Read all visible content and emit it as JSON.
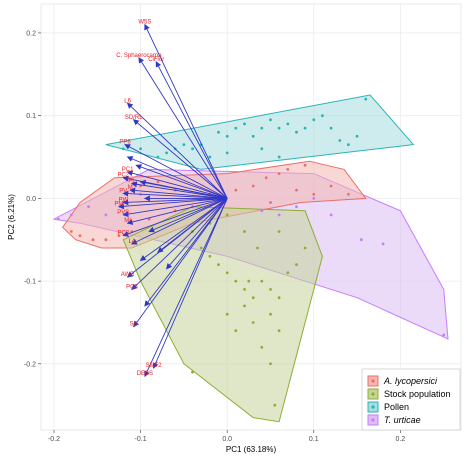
{
  "chart_data": {
    "type": "scatter",
    "title": "",
    "xlabel": "PC1 (63.18%)",
    "ylabel": "PC2 (6.21%)",
    "xlim": [
      -0.215,
      0.27
    ],
    "ylim": [
      -0.28,
      0.235
    ],
    "x_ticks": [
      {
        "value": -0.2,
        "label": "-0.2"
      },
      {
        "value": -0.1,
        "label": "-0.1"
      },
      {
        "value": 0.0,
        "label": "0.0"
      },
      {
        "value": 0.1,
        "label": "0.1"
      },
      {
        "value": 0.2,
        "label": "0.2"
      }
    ],
    "y_ticks": [
      {
        "value": 0.2,
        "label": "0.2"
      },
      {
        "value": 0.1,
        "label": "0.1"
      },
      {
        "value": 0.0,
        "label": "0.0"
      },
      {
        "value": -0.1,
        "label": "-0.1"
      },
      {
        "value": -0.2,
        "label": "-0.2"
      }
    ],
    "grid": true,
    "legend_position": "bottom-right",
    "series": [
      {
        "name": "A. lycopersici",
        "italic": true,
        "color": "#e8706a",
        "fill": "#f3b6b0",
        "hull": [
          [
            -0.19,
            -0.035
          ],
          [
            -0.175,
            -0.05
          ],
          [
            -0.145,
            -0.06
          ],
          [
            -0.11,
            -0.06
          ],
          [
            -0.04,
            -0.03
          ],
          [
            0.085,
            -0.005
          ],
          [
            0.16,
            0.0
          ],
          [
            0.135,
            0.035
          ],
          [
            0.095,
            0.045
          ],
          [
            0.0,
            0.03
          ],
          [
            -0.13,
            0.025
          ],
          [
            -0.17,
            -0.005
          ]
        ],
        "points": [
          [
            -0.18,
            -0.04
          ],
          [
            -0.17,
            -0.045
          ],
          [
            -0.155,
            -0.05
          ],
          [
            -0.14,
            -0.05
          ],
          [
            -0.125,
            -0.045
          ],
          [
            -0.11,
            -0.04
          ],
          [
            -0.09,
            -0.025
          ],
          [
            -0.06,
            -0.015
          ],
          [
            -0.04,
            -0.01
          ],
          [
            -0.02,
            0.005
          ],
          [
            0.01,
            0.01
          ],
          [
            0.03,
            0.015
          ],
          [
            0.045,
            0.025
          ],
          [
            0.06,
            0.03
          ],
          [
            0.07,
            0.035
          ],
          [
            0.08,
            0.01
          ],
          [
            0.1,
            0.005
          ],
          [
            0.12,
            0.015
          ],
          [
            0.14,
            0.005
          ],
          [
            -0.1,
            0.015
          ],
          [
            -0.08,
            0.02
          ],
          [
            -0.06,
            0.01
          ],
          [
            0.05,
            -0.005
          ],
          [
            0.09,
            0.04
          ]
        ]
      },
      {
        "name": "Stock population",
        "italic": false,
        "color": "#8cae33",
        "fill": "#c6d49a",
        "hull": [
          [
            -0.12,
            -0.05
          ],
          [
            -0.1,
            -0.1
          ],
          [
            -0.05,
            -0.2
          ],
          [
            0.03,
            -0.265
          ],
          [
            0.06,
            -0.27
          ],
          [
            0.1,
            -0.11
          ],
          [
            0.11,
            -0.07
          ],
          [
            0.09,
            -0.015
          ],
          [
            -0.04,
            -0.01
          ]
        ],
        "points": [
          [
            -0.04,
            -0.04
          ],
          [
            -0.03,
            -0.06
          ],
          [
            -0.02,
            -0.07
          ],
          [
            -0.01,
            -0.08
          ],
          [
            0.0,
            -0.09
          ],
          [
            0.01,
            -0.1
          ],
          [
            0.02,
            -0.11
          ],
          [
            0.03,
            -0.12
          ],
          [
            0.04,
            -0.1
          ],
          [
            0.05,
            -0.11
          ],
          [
            0.06,
            -0.12
          ],
          [
            0.07,
            -0.09
          ],
          [
            0.08,
            -0.08
          ],
          [
            0.09,
            -0.06
          ],
          [
            0.02,
            -0.13
          ],
          [
            0.03,
            -0.15
          ],
          [
            0.05,
            -0.14
          ],
          [
            0.06,
            -0.16
          ],
          [
            0.04,
            -0.18
          ],
          [
            0.05,
            -0.2
          ],
          [
            0.055,
            -0.25
          ],
          [
            -0.04,
            -0.21
          ],
          [
            0.0,
            -0.14
          ],
          [
            0.01,
            -0.16
          ],
          [
            0.025,
            -0.1
          ],
          [
            0.035,
            -0.06
          ],
          [
            0.06,
            -0.04
          ],
          [
            0.0,
            -0.02
          ],
          [
            -0.02,
            -0.03
          ],
          [
            0.02,
            -0.04
          ]
        ]
      },
      {
        "name": "Pollen",
        "italic": false,
        "color": "#27b5b6",
        "fill": "#a6dcde",
        "hull": [
          [
            -0.14,
            0.065
          ],
          [
            0.165,
            0.125
          ],
          [
            0.215,
            0.065
          ],
          [
            -0.03,
            0.035
          ]
        ],
        "points": [
          [
            -0.12,
            0.06
          ],
          [
            -0.1,
            0.06
          ],
          [
            -0.08,
            0.05
          ],
          [
            -0.07,
            0.055
          ],
          [
            -0.06,
            0.06
          ],
          [
            -0.05,
            0.065
          ],
          [
            -0.04,
            0.06
          ],
          [
            -0.03,
            0.065
          ],
          [
            -0.01,
            0.08
          ],
          [
            0.0,
            0.075
          ],
          [
            0.01,
            0.085
          ],
          [
            0.02,
            0.09
          ],
          [
            0.03,
            0.075
          ],
          [
            0.04,
            0.085
          ],
          [
            0.05,
            0.095
          ],
          [
            0.06,
            0.085
          ],
          [
            0.07,
            0.09
          ],
          [
            0.08,
            0.08
          ],
          [
            0.09,
            0.085
          ],
          [
            0.1,
            0.095
          ],
          [
            0.11,
            0.1
          ],
          [
            0.12,
            0.085
          ],
          [
            0.13,
            0.07
          ],
          [
            0.14,
            0.065
          ],
          [
            0.15,
            0.075
          ],
          [
            0.16,
            0.12
          ],
          [
            0.04,
            0.06
          ],
          [
            0.06,
            0.05
          ],
          [
            0.0,
            0.055
          ],
          [
            -0.02,
            0.05
          ]
        ]
      },
      {
        "name": "T. urticae",
        "italic": true,
        "color": "#c77cff",
        "fill": "#ddbdf2",
        "hull": [
          [
            -0.2,
            -0.025
          ],
          [
            -0.17,
            -0.03
          ],
          [
            0.0,
            -0.07
          ],
          [
            0.15,
            -0.12
          ],
          [
            0.255,
            -0.17
          ],
          [
            0.25,
            -0.11
          ],
          [
            0.2,
            -0.015
          ],
          [
            0.1,
            0.03
          ],
          [
            -0.09,
            0.035
          ]
        ],
        "points": [
          [
            -0.195,
            -0.025
          ],
          [
            -0.18,
            -0.02
          ],
          [
            -0.16,
            -0.01
          ],
          [
            -0.14,
            -0.02
          ],
          [
            -0.12,
            -0.005
          ],
          [
            -0.1,
            0.005
          ],
          [
            0.04,
            -0.015
          ],
          [
            0.06,
            -0.02
          ],
          [
            0.08,
            -0.01
          ],
          [
            0.1,
            0.0
          ],
          [
            0.12,
            -0.02
          ],
          [
            0.155,
            -0.05
          ],
          [
            0.18,
            -0.055
          ],
          [
            0.25,
            -0.165
          ]
        ]
      }
    ],
    "loadings": {
      "color": "#3238c6",
      "vectors": [
        {
          "label": "W5S",
          "x": -0.095,
          "y": 0.21
        },
        {
          "label": "C. Sphaerocarpa",
          "x": -0.102,
          "y": 0.17
        },
        {
          "label": "CiFlor",
          "x": -0.082,
          "y": 0.165
        },
        {
          "label": "L6",
          "x": -0.115,
          "y": 0.115
        },
        {
          "label": "SD/RL",
          "x": -0.108,
          "y": 0.095
        },
        {
          "label": "PP6",
          "x": -0.118,
          "y": 0.065
        },
        {
          "label": "PC1",
          "x": -0.115,
          "y": 0.032
        },
        {
          "label": "PC2",
          "x": -0.12,
          "y": 0.025
        },
        {
          "label": "PL",
          "x": -0.11,
          "y": 0.018
        },
        {
          "label": "M",
          "x": -0.112,
          "y": 0.01
        },
        {
          "label": "PV",
          "x": -0.12,
          "y": 0.006
        },
        {
          "label": "PW",
          "x": -0.12,
          "y": -0.005
        },
        {
          "label": "PM",
          "x": -0.125,
          "y": -0.01
        },
        {
          "label": "PVS",
          "x": -0.12,
          "y": -0.02
        },
        {
          "label": "MI",
          "x": -0.115,
          "y": -0.03
        },
        {
          "label": "PC3",
          "x": -0.12,
          "y": -0.045
        },
        {
          "label": "L4",
          "x": -0.11,
          "y": -0.055
        },
        {
          "label": "AWR",
          "x": -0.115,
          "y": -0.095
        },
        {
          "label": "PC5",
          "x": -0.11,
          "y": -0.11
        },
        {
          "label": "SC",
          "x": -0.108,
          "y": -0.155
        },
        {
          "label": "SMT2",
          "x": -0.085,
          "y": -0.205
        },
        {
          "label": "DESS",
          "x": -0.095,
          "y": -0.215
        }
      ],
      "extra_arrows": [
        {
          "x": -0.115,
          "y": 0.05
        },
        {
          "x": -0.105,
          "y": 0.04
        },
        {
          "x": -0.1,
          "y": 0.02
        },
        {
          "x": -0.095,
          "y": 0.0
        },
        {
          "x": -0.09,
          "y": -0.04
        },
        {
          "x": -0.08,
          "y": -0.065
        },
        {
          "x": -0.07,
          "y": -0.085
        },
        {
          "x": -0.1,
          "y": -0.075
        },
        {
          "x": -0.095,
          "y": -0.13
        }
      ]
    }
  }
}
